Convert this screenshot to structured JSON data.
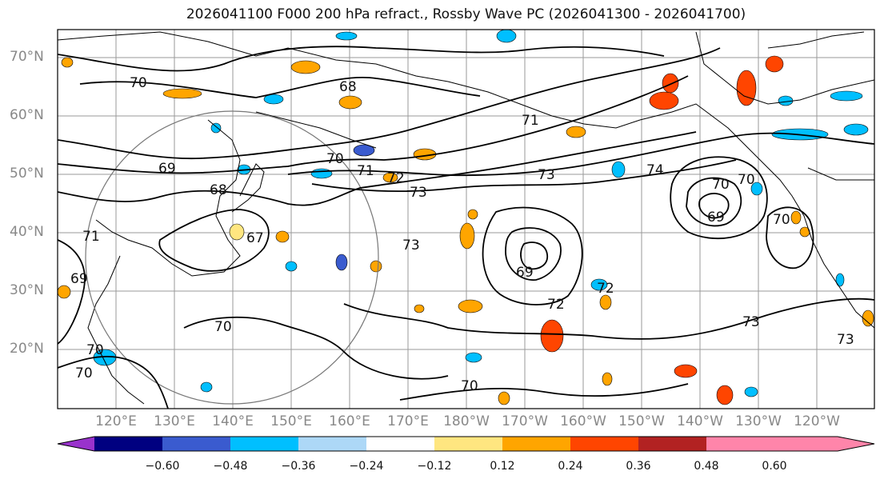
{
  "title": "2026041100 F000 200 hPa refract., Rossby Wave PC (2026041300 - 2026041700)",
  "lat_ticks": [
    "70°N",
    "60°N",
    "50°N",
    "40°N",
    "30°N",
    "20°N"
  ],
  "lon_ticks": [
    "120°E",
    "130°E",
    "140°E",
    "150°E",
    "160°E",
    "170°E",
    "180°W",
    "170°W",
    "160°W",
    "150°W",
    "140°W",
    "130°W",
    "120°W"
  ],
  "colorbar": {
    "tick_labels": [
      "−0.60",
      "−0.48",
      "−0.36",
      "−0.24",
      "−0.12",
      "0.12",
      "0.24",
      "0.36",
      "0.48",
      "0.60"
    ],
    "colors": [
      "#9932CC",
      "#000080",
      "#3A5BCF",
      "#00BFFF",
      "#ADD8F7",
      "#FFFFFF",
      "#FFE680",
      "#FFA500",
      "#FF4500",
      "#B22222",
      "#FF85AA"
    ]
  },
  "contour_labels": [
    "70",
    "68",
    "69",
    "70",
    "71",
    "72",
    "73",
    "74",
    "68",
    "67",
    "71",
    "69",
    "73",
    "70",
    "71",
    "69",
    "70",
    "73",
    "70",
    "69",
    "72",
    "72",
    "73",
    "73",
    "70",
    "70",
    "70",
    "70"
  ],
  "chart_data": {
    "type": "map",
    "title": "2026041100 F000 200 hPa refract., Rossby Wave PC (2026041300 - 2026041700)",
    "lon_range": [
      110,
      250
    ],
    "lat_range": [
      10,
      75
    ],
    "contour_field": "refractivity",
    "contour_levels": [
      67,
      68,
      69,
      70,
      71,
      72,
      73,
      74
    ],
    "shading_field": "Rossby Wave PC",
    "shading_levels": [
      -0.6,
      -0.48,
      -0.36,
      -0.24,
      -0.12,
      0.12,
      0.24,
      0.36,
      0.48,
      0.6
    ]
  }
}
